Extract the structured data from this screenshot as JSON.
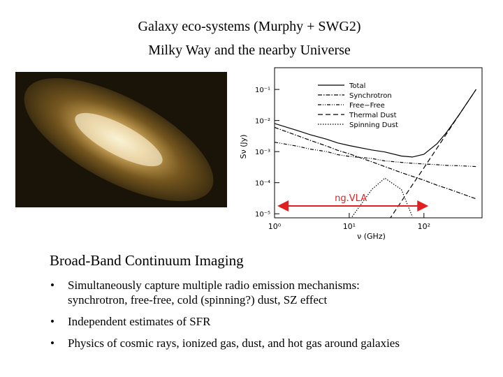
{
  "header": {
    "title_line1": "Galaxy eco-systems (Murphy + SWG2)",
    "title_line2": "Milky Way and the nearby Universe"
  },
  "chart_data": {
    "type": "line",
    "x_label": "ν (GHz)",
    "y_label": "Sν (Jy)",
    "xlog": true,
    "ylog": true,
    "xlim": [
      1,
      600
    ],
    "ylim": [
      7.4e-06,
      0.5
    ],
    "xticks": [
      {
        "value": 1,
        "label": "10⁰"
      },
      {
        "value": 10,
        "label": "10¹"
      },
      {
        "value": 100,
        "label": "10²"
      }
    ],
    "yticks": [
      {
        "value": 0.1,
        "label": "10⁻¹"
      },
      {
        "value": 0.01,
        "label": "10⁻²"
      },
      {
        "value": 0.001,
        "label": "10⁻³"
      },
      {
        "value": 0.0001,
        "label": "10⁻⁴"
      },
      {
        "value": 1e-05,
        "label": "10⁻⁵"
      }
    ],
    "legend": "upper right",
    "x": [
      1,
      2,
      3,
      5,
      7,
      10,
      20,
      30,
      50,
      70,
      100,
      150,
      200,
      300,
      500
    ],
    "series": [
      {
        "name": "Total",
        "color": "#000000",
        "dash": "none",
        "values": [
          0.008,
          0.0048,
          0.0035,
          0.0025,
          0.0019,
          0.00156,
          0.00113,
          0.00097,
          0.00072,
          0.00067,
          0.00082,
          0.0018,
          0.0041,
          0.016,
          0.1
        ]
      },
      {
        "name": "Synchrotron",
        "color": "#000000",
        "dash": "6 2 1.5 2",
        "values": [
          0.006,
          0.0033,
          0.0023,
          0.0015,
          0.0011,
          0.00085,
          0.00047,
          0.00033,
          0.00021,
          0.00016,
          0.00012,
          8.3e-05,
          6.6e-05,
          4.7e-05,
          3e-05
        ]
      },
      {
        "name": "Free−Free",
        "color": "#000000",
        "dash": "5 2 1 2 1 2",
        "values": [
          0.002,
          0.0015,
          0.0012,
          0.001,
          0.0008,
          0.0007,
          0.0006,
          0.0005,
          0.00045,
          0.00042,
          0.0004,
          0.00038,
          0.00036,
          0.00035,
          0.00033
        ]
      },
      {
        "name": "Thermal Dust",
        "color": "#000000",
        "dash": "7 4",
        "values": [
          null,
          null,
          null,
          null,
          null,
          null,
          null,
          4e-06,
          2.5e-05,
          8.5e-05,
          0.0003,
          0.0013,
          0.0037,
          0.016,
          0.1
        ]
      },
      {
        "name": "Spinning Dust",
        "color": "#000000",
        "dash": "1.5 2",
        "values": [
          null,
          null,
          null,
          null,
          null,
          6e-06,
          6e-05,
          0.00014,
          6e-05,
          8e-06,
          null,
          null,
          null,
          null,
          null
        ]
      }
    ],
    "annotation": {
      "text": "ng.VLA",
      "color": "#e02020",
      "range": [
        1,
        110
      ]
    }
  },
  "section": {
    "heading": "Broad-Band Continuum Imaging",
    "bullets": [
      [
        "Simultaneously capture multiple radio emission mechanisms:",
        "synchrotron, free-free, cold (spinning?) dust, SZ effect"
      ],
      [
        "Independent estimates of SFR"
      ],
      [
        "Physics of cosmic rays, ionized gas, dust, and hot gas around galaxies"
      ]
    ]
  }
}
